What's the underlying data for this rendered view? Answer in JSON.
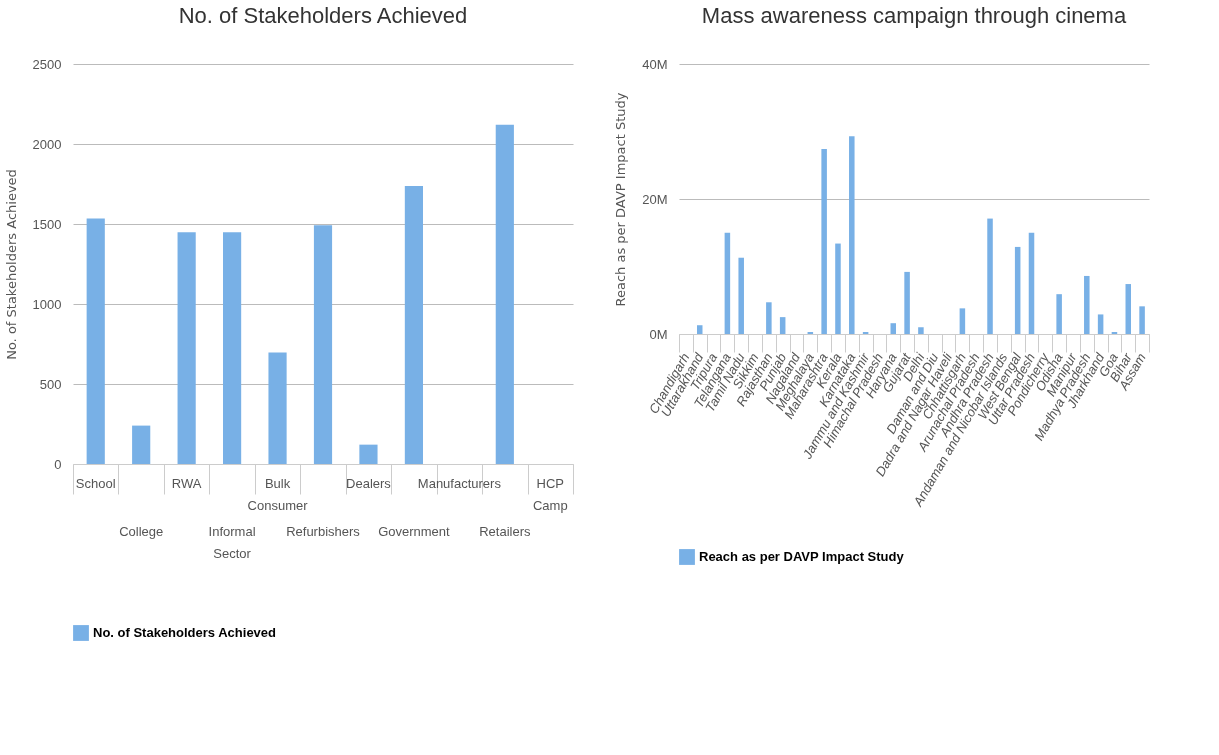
{
  "chart_data": [
    {
      "type": "bar",
      "title": "No. of Stakeholders Achieved",
      "ylabel": "No. of Stakeholders Achieved",
      "categories": [
        "School",
        "College",
        "RWA",
        "Informal Sector",
        "Bulk Consumer",
        "Refurbishers",
        "Dealers",
        "Government",
        "Manufacturers",
        "Retailers",
        "HCP Camp"
      ],
      "series": [
        {
          "name": "No. of Stakeholders Achieved",
          "color": "#78b0e6",
          "values": [
            1534,
            240,
            1448,
            1448,
            697,
            1492,
            121,
            1737,
            0,
            2120,
            0
          ]
        }
      ],
      "ylim": [
        0,
        2500
      ],
      "yticks": [
        0,
        500,
        1000,
        1500,
        2000,
        2500
      ],
      "grid": "y",
      "legend": "bottom"
    },
    {
      "type": "bar",
      "title": "Mass awareness campaign through cinema",
      "ylabel": "Reach as per DAVP Impact Study",
      "categories": [
        "Chandigarh",
        "Uttarakhand",
        "Tripura",
        "Telangana",
        "Tamil Nadu",
        "Sikkim",
        "Rajasthan",
        "Punjab",
        "Nagaland",
        "Meghalaya",
        "Maharashtra",
        "Kerala",
        "Karnataka",
        "Jammu and Kashmir",
        "Himachal Pradesh",
        "Haryana",
        "Gujarat",
        "Delhi",
        "Daman and Diu",
        "Dadra and Nagar Haveli",
        "Chhattisgarh",
        "Arunachal Pradesh",
        "Andhra Pradesh",
        "Andaman and Nicobar Islands",
        "West Bengal",
        "Uttar Pradesh",
        "Pondicherry",
        "Odisha",
        "Manipur",
        "Madhya Pradesh",
        "Jharkhand",
        "Goa",
        "Bihar",
        "Assam"
      ],
      "series": [
        {
          "name": "Reach as per DAVP Impact Study",
          "color": "#78b0e6",
          "values": [
            0,
            1.3,
            0,
            15.0,
            11.3,
            0,
            4.7,
            2.5,
            0,
            0.3,
            27.4,
            13.4,
            29.3,
            0.3,
            0,
            1.6,
            9.2,
            1.0,
            0,
            0,
            3.8,
            0,
            17.1,
            0,
            12.9,
            15.0,
            0,
            5.9,
            0,
            8.6,
            2.9,
            0.3,
            7.4,
            4.1
          ]
        }
      ],
      "ylim": [
        0,
        40
      ],
      "yticks": [
        {
          "value": 0,
          "label": "0M"
        },
        {
          "value": 20,
          "label": "20M"
        },
        {
          "value": 40,
          "label": "40M"
        }
      ],
      "grid": "y",
      "legend": "bottom"
    }
  ]
}
